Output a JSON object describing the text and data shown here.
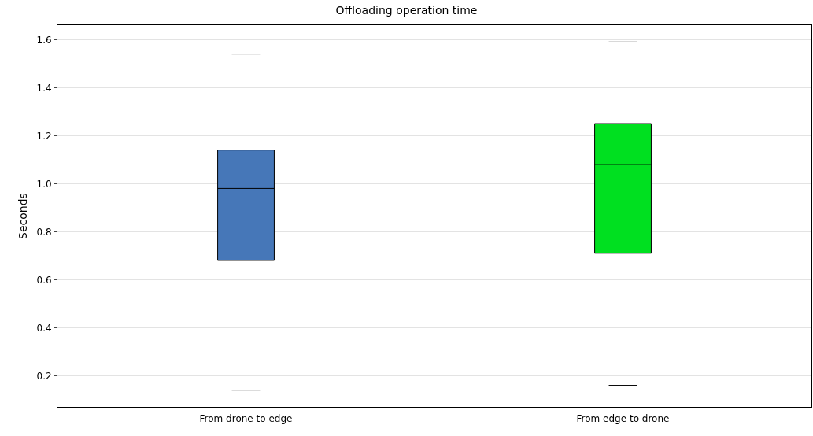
{
  "chart_data": {
    "type": "box",
    "title": "Offloading operation time",
    "ylabel": "Seconds",
    "categories": [
      "From drone to edge",
      "From edge to drone"
    ],
    "colors": [
      "#4677b8",
      "#00e020"
    ],
    "boxes": [
      {
        "low": 0.14,
        "q1": 0.68,
        "median": 0.98,
        "q3": 1.14,
        "high": 1.54
      },
      {
        "low": 0.16,
        "q1": 0.71,
        "median": 1.08,
        "q3": 1.25,
        "high": 1.59
      }
    ],
    "ylim": [
      0.07,
      1.66
    ],
    "yticks": [
      {
        "value": 0.2,
        "label": "0.2"
      },
      {
        "value": 0.4,
        "label": "0.4"
      },
      {
        "value": 0.6,
        "label": "0.6"
      },
      {
        "value": 0.8,
        "label": "0.8"
      },
      {
        "value": 1.0,
        "label": "1.0"
      },
      {
        "value": 1.2,
        "label": "1.2"
      },
      {
        "value": 1.4,
        "label": "1.4"
      },
      {
        "value": 1.6,
        "label": "1.6"
      }
    ],
    "grid": "y"
  }
}
